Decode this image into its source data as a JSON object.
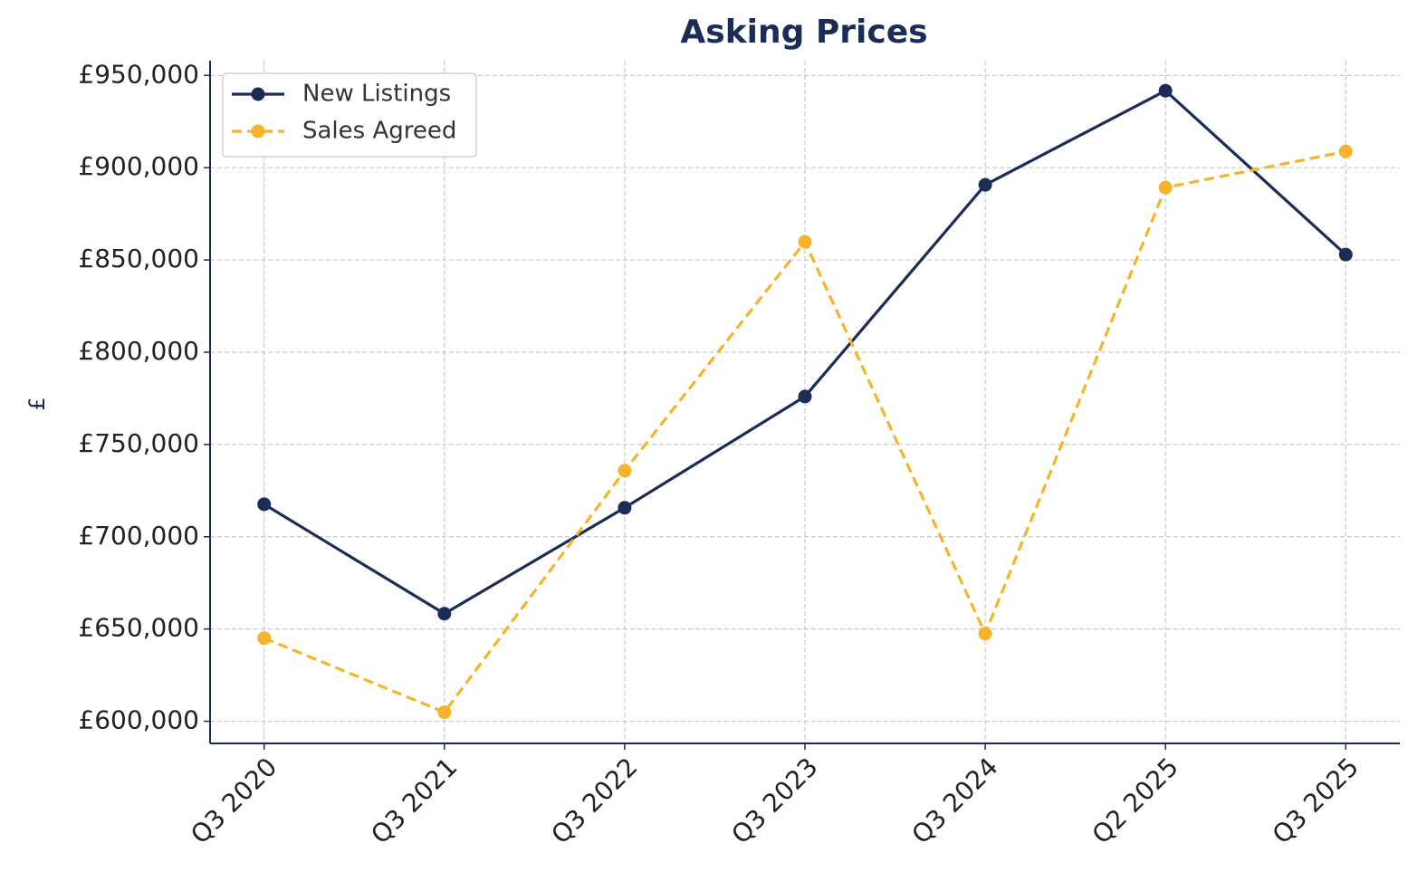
{
  "chart_data": {
    "type": "line",
    "title": "Asking Prices",
    "y_label": "£",
    "categories": [
      "Q3 2020",
      "Q3 2021",
      "Q3 2022",
      "Q3 2023",
      "Q3 2024",
      "Q2 2025",
      "Q3 2025"
    ],
    "series": [
      {
        "name": "New Listings",
        "color": "#1b2d57",
        "dash": false,
        "values": [
          717600,
          658300,
          715700,
          776000,
          890700,
          941700,
          852900
        ]
      },
      {
        "name": "Sales Agreed",
        "color": "#f7b32b",
        "dash": true,
        "values": [
          645100,
          604900,
          735800,
          859800,
          647500,
          889200,
          908800
        ]
      }
    ],
    "ylim": [
      588000,
      958000
    ],
    "yticks": [
      {
        "value": 600000,
        "label": "£600,000"
      },
      {
        "value": 650000,
        "label": "£650,000"
      },
      {
        "value": 700000,
        "label": "£700,000"
      },
      {
        "value": 750000,
        "label": "£750,000"
      },
      {
        "value": 800000,
        "label": "£800,000"
      },
      {
        "value": 850000,
        "label": "£850,000"
      },
      {
        "value": 900000,
        "label": "£900,000"
      },
      {
        "value": 950000,
        "label": "£950,000"
      }
    ],
    "grid": true,
    "legend": "upper left"
  }
}
